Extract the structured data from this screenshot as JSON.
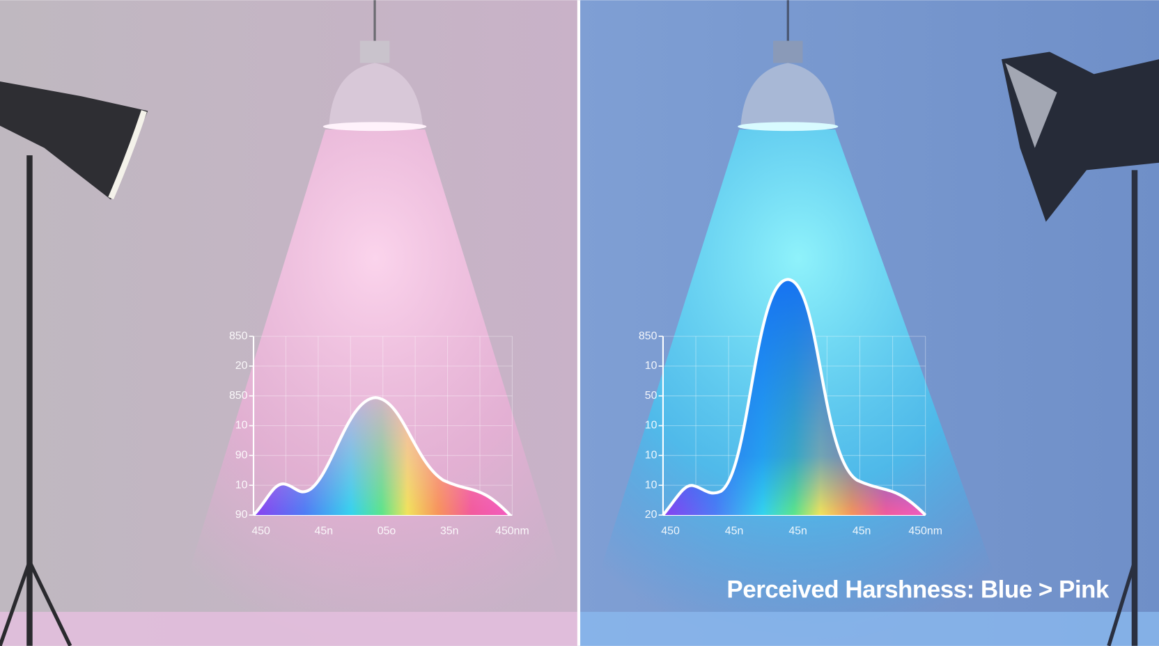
{
  "panels": [
    {
      "y_labels": [
        "850",
        "20",
        "850",
        "10",
        "90",
        "10",
        "90"
      ],
      "x_labels": [
        "450",
        "45n",
        "05o",
        "35n",
        "450nm"
      ]
    },
    {
      "y_labels": [
        "850",
        "10",
        "50",
        "10",
        "10",
        "10",
        "20"
      ],
      "x_labels": [
        "450",
        "45n",
        "45n",
        "45n",
        "450nm"
      ]
    }
  ],
  "caption": "Perceived Harshness: Blue > Pink"
}
